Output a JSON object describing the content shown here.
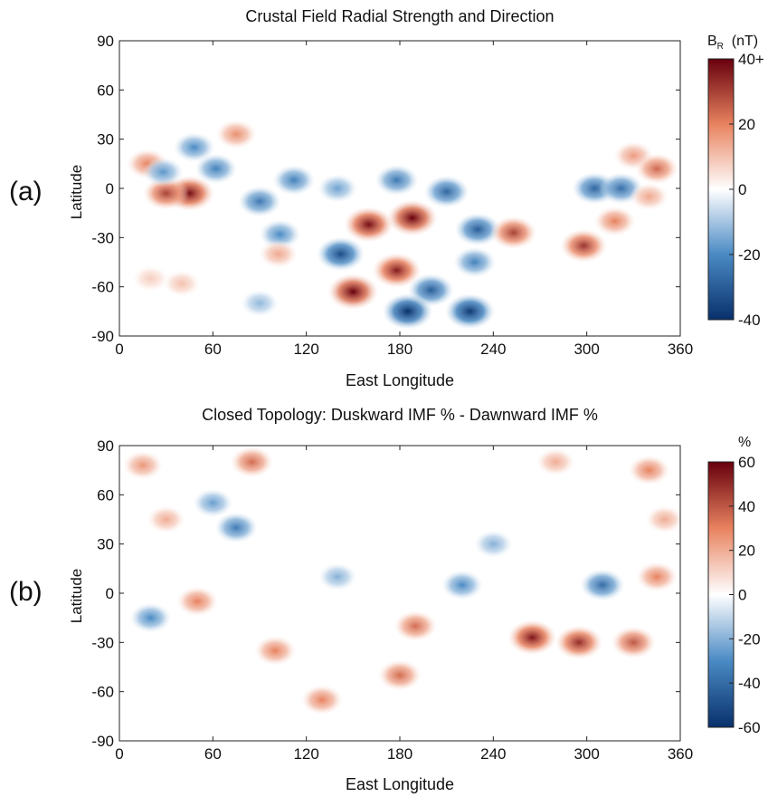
{
  "panels": [
    {
      "tag": "(a)",
      "title": "Crustal Field Radial Strength and Direction",
      "colorbar_label_main": "B",
      "colorbar_label_sub": "R",
      "colorbar_label_unit": "(nT)",
      "colorbar_ticks": [
        "40+",
        "20",
        "0",
        "-20",
        "-40"
      ]
    },
    {
      "tag": "(b)",
      "title": "Closed Topology:  Duskward IMF % - Dawnward IMF %",
      "colorbar_label_unit": "%",
      "colorbar_ticks": [
        "60",
        "40",
        "20",
        "0",
        "-20",
        "-40",
        "-60"
      ]
    }
  ],
  "colors": {
    "neg_max": "#08306b",
    "neg_mid": "#4a8ac4",
    "zero": "#ffffff",
    "pos_mid": "#e8825f",
    "pos_max": "#67000d"
  },
  "chart_data": [
    {
      "type": "heatmap",
      "title": "Crustal Field Radial Strength and Direction",
      "xlabel": "East Longitude",
      "ylabel": "Latitude",
      "xlim": [
        0,
        360
      ],
      "ylim": [
        -90,
        90
      ],
      "xticks": [
        0,
        60,
        120,
        180,
        240,
        300,
        360
      ],
      "yticks": [
        90,
        60,
        30,
        0,
        -30,
        -60,
        -90
      ],
      "colorbar": {
        "label": "B_R (nT)",
        "range": [
          -40,
          40
        ],
        "ticks": [
          "40+",
          "20",
          "0",
          "-20",
          "-40"
        ]
      },
      "features": [
        {
          "lon": 45,
          "lat": -3,
          "value": 38
        },
        {
          "lon": 30,
          "lat": -3,
          "value": 30
        },
        {
          "lon": 18,
          "lat": 15,
          "value": 20
        },
        {
          "lon": 75,
          "lat": 33,
          "value": 18
        },
        {
          "lon": 62,
          "lat": 12,
          "value": -22
        },
        {
          "lon": 48,
          "lat": 25,
          "value": -20
        },
        {
          "lon": 28,
          "lat": 10,
          "value": -18
        },
        {
          "lon": 90,
          "lat": -8,
          "value": -24
        },
        {
          "lon": 112,
          "lat": 5,
          "value": -22
        },
        {
          "lon": 103,
          "lat": -28,
          "value": -20
        },
        {
          "lon": 102,
          "lat": -40,
          "value": 14
        },
        {
          "lon": 142,
          "lat": -40,
          "value": -34
        },
        {
          "lon": 160,
          "lat": -22,
          "value": 38
        },
        {
          "lon": 188,
          "lat": -18,
          "value": 40
        },
        {
          "lon": 178,
          "lat": -50,
          "value": 36
        },
        {
          "lon": 200,
          "lat": -62,
          "value": -30
        },
        {
          "lon": 150,
          "lat": -63,
          "value": 40
        },
        {
          "lon": 185,
          "lat": -75,
          "value": -40
        },
        {
          "lon": 225,
          "lat": -75,
          "value": -38
        },
        {
          "lon": 228,
          "lat": -45,
          "value": -22
        },
        {
          "lon": 230,
          "lat": -25,
          "value": -30
        },
        {
          "lon": 253,
          "lat": -27,
          "value": 30
        },
        {
          "lon": 140,
          "lat": 0,
          "value": -16
        },
        {
          "lon": 178,
          "lat": 5,
          "value": -24
        },
        {
          "lon": 210,
          "lat": -2,
          "value": -28
        },
        {
          "lon": 90,
          "lat": -70,
          "value": -12
        },
        {
          "lon": 40,
          "lat": -58,
          "value": 10
        },
        {
          "lon": 20,
          "lat": -55,
          "value": 8
        },
        {
          "lon": 298,
          "lat": -35,
          "value": 32
        },
        {
          "lon": 305,
          "lat": 0,
          "value": -28
        },
        {
          "lon": 322,
          "lat": 0,
          "value": -26
        },
        {
          "lon": 330,
          "lat": 20,
          "value": 16
        },
        {
          "lon": 345,
          "lat": 12,
          "value": 24
        },
        {
          "lon": 318,
          "lat": -20,
          "value": 20
        },
        {
          "lon": 340,
          "lat": -5,
          "value": 14
        }
      ]
    },
    {
      "type": "heatmap",
      "title": "Closed Topology:  Duskward IMF % - Dawnward IMF %",
      "xlabel": "East Longitude",
      "ylabel": "Latitude",
      "xlim": [
        0,
        360
      ],
      "ylim": [
        -90,
        90
      ],
      "xticks": [
        0,
        60,
        120,
        180,
        240,
        300,
        360
      ],
      "yticks": [
        90,
        60,
        30,
        0,
        -30,
        -60,
        -90
      ],
      "colorbar": {
        "label": "%",
        "range": [
          -60,
          60
        ],
        "ticks": [
          "60",
          "40",
          "20",
          "0",
          "-20",
          "-40",
          "-60"
        ]
      },
      "features": [
        {
          "lon": 15,
          "lat": 78,
          "value": 25
        },
        {
          "lon": 85,
          "lat": 80,
          "value": 35
        },
        {
          "lon": 280,
          "lat": 80,
          "value": 20
        },
        {
          "lon": 340,
          "lat": 75,
          "value": 30
        },
        {
          "lon": 30,
          "lat": 45,
          "value": 20
        },
        {
          "lon": 75,
          "lat": 40,
          "value": -35
        },
        {
          "lon": 60,
          "lat": 55,
          "value": -25
        },
        {
          "lon": 20,
          "lat": -15,
          "value": -30
        },
        {
          "lon": 50,
          "lat": -5,
          "value": 30
        },
        {
          "lon": 140,
          "lat": 10,
          "value": -20
        },
        {
          "lon": 190,
          "lat": -20,
          "value": 35
        },
        {
          "lon": 220,
          "lat": 5,
          "value": -30
        },
        {
          "lon": 265,
          "lat": -27,
          "value": 55
        },
        {
          "lon": 295,
          "lat": -30,
          "value": 50
        },
        {
          "lon": 330,
          "lat": -30,
          "value": 40
        },
        {
          "lon": 310,
          "lat": 5,
          "value": -40
        },
        {
          "lon": 240,
          "lat": 30,
          "value": -20
        },
        {
          "lon": 100,
          "lat": -35,
          "value": 30
        },
        {
          "lon": 180,
          "lat": -50,
          "value": 35
        },
        {
          "lon": 130,
          "lat": -65,
          "value": 30
        },
        {
          "lon": 345,
          "lat": 10,
          "value": 30
        },
        {
          "lon": 350,
          "lat": 45,
          "value": 20
        }
      ]
    }
  ]
}
